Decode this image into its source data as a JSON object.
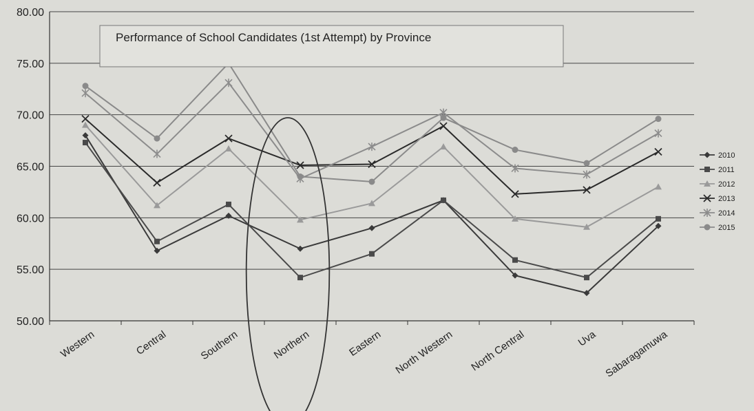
{
  "chart_data": {
    "type": "line",
    "title": "Performance of School Candidates (1st Attempt) by Province",
    "categories": [
      "Western",
      "Central",
      "Southern",
      "Northern",
      "Eastern",
      "North Western",
      "North Central",
      "Uva",
      "Sabaragamuwa"
    ],
    "ylim": [
      50,
      80
    ],
    "yticks": [
      "50.00",
      "55.00",
      "60.00",
      "65.00",
      "70.00",
      "75.00",
      "80.00"
    ],
    "grid": "horizontal",
    "legend_position": "right",
    "series": [
      {
        "name": "2010",
        "marker": "diamond",
        "values": [
          68.0,
          56.8,
          60.2,
          57.0,
          59.0,
          61.7,
          54.4,
          52.7,
          59.2
        ]
      },
      {
        "name": "2011",
        "marker": "square",
        "values": [
          67.3,
          57.7,
          61.3,
          54.2,
          56.5,
          61.7,
          55.9,
          54.2,
          59.9
        ]
      },
      {
        "name": "2012",
        "marker": "triangle",
        "values": [
          69.0,
          61.2,
          66.7,
          59.8,
          61.4,
          66.9,
          59.9,
          59.1,
          63.0
        ]
      },
      {
        "name": "2013",
        "marker": "x",
        "values": [
          69.6,
          63.4,
          67.7,
          65.1,
          65.2,
          68.9,
          62.3,
          62.7,
          66.4
        ]
      },
      {
        "name": "2014",
        "marker": "star",
        "values": [
          72.1,
          66.2,
          73.1,
          63.8,
          66.9,
          70.2,
          64.8,
          64.2,
          68.2
        ]
      },
      {
        "name": "2015",
        "marker": "circle",
        "values": [
          72.8,
          67.7,
          75.0,
          64.0,
          63.5,
          69.7,
          66.6,
          65.3,
          69.6
        ]
      }
    ],
    "annotations": [
      {
        "type": "ellipse",
        "category": "Northern"
      }
    ]
  }
}
